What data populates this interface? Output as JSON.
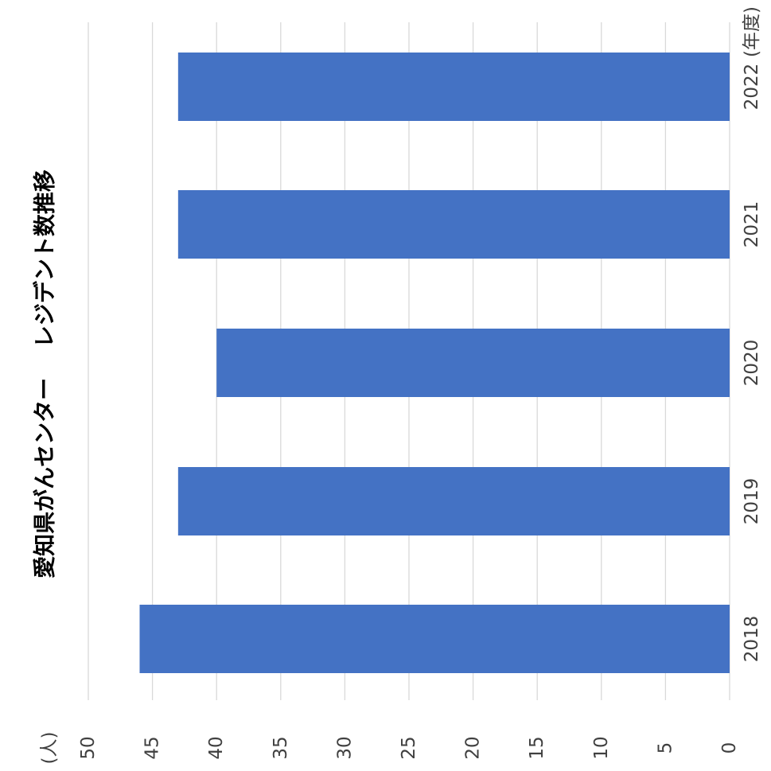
{
  "chart_data": {
    "type": "bar",
    "orientation": "horizontal",
    "rotated": "page rotated 90 degrees counter-clockwise",
    "title": "愛知県がんセンター　 レジデント数推移",
    "categories": [
      "2018",
      "2019",
      "2020",
      "2021",
      "2022"
    ],
    "values": [
      46,
      43,
      40,
      43,
      43
    ],
    "category_unit": "(年度)",
    "value_unit": "(人)",
    "value_ticks": [
      "0",
      "5",
      "10",
      "15",
      "20",
      "25",
      "30",
      "35",
      "40",
      "45",
      "50"
    ],
    "ylim": [
      0,
      50
    ],
    "grid": true,
    "bar_color": "#4472C4",
    "grid_color": "#D9D9D9"
  }
}
